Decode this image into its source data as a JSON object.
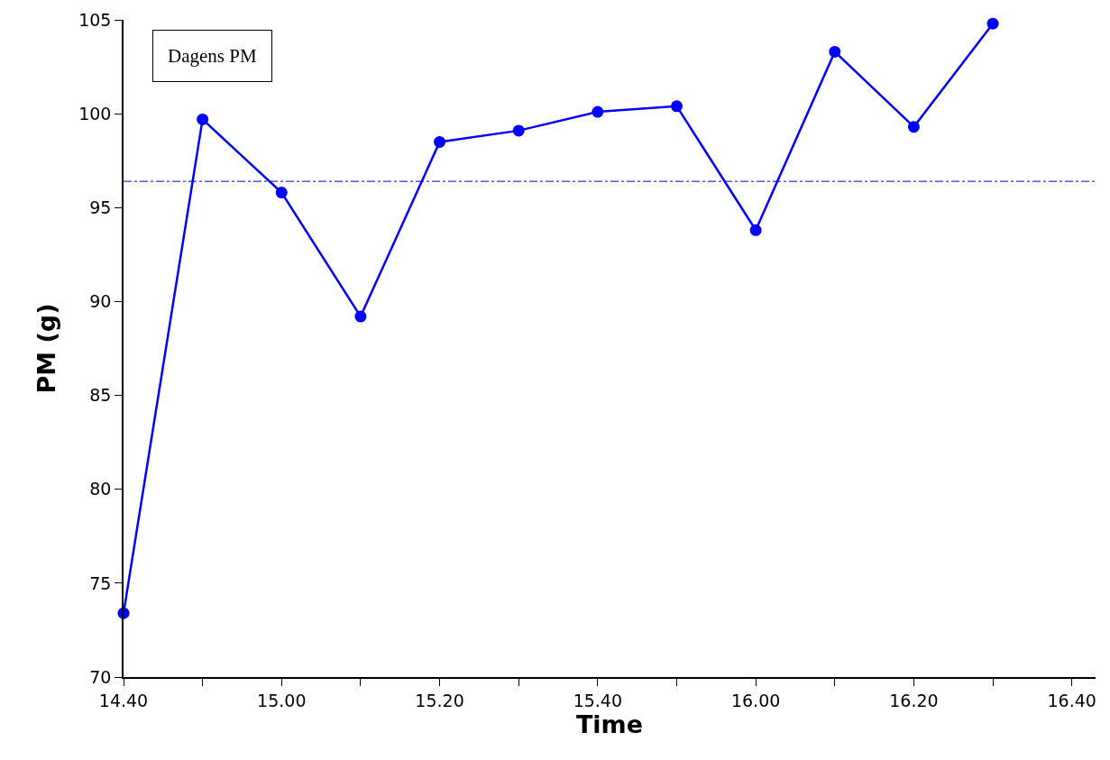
{
  "chart_data": {
    "type": "line",
    "xlabel": "Time",
    "ylabel": "PM (g)",
    "categories": [
      "14.40",
      null,
      "15.00",
      null,
      "15.20",
      null,
      "15.40",
      null,
      "16.00",
      null,
      "16.20",
      null,
      "16.40"
    ],
    "series": [
      {
        "color": "#0000ff",
        "values": [
          73.4,
          99.7,
          95.8,
          89.2,
          98.5,
          99.1,
          100.1,
          100.4,
          93.8,
          103.3,
          99.3,
          104.8,
          null
        ]
      }
    ],
    "ylim": [
      70,
      105
    ],
    "yticks": [
      70,
      75,
      80,
      85,
      90,
      95,
      100,
      105
    ],
    "ref_lines": [
      {
        "axis": "y",
        "value": 96.4,
        "color": "#0000cc",
        "line_style": "dashed"
      }
    ],
    "annotations": [
      "Dagens PM"
    ],
    "grid": false,
    "marker": "circle",
    "line_style": "solid"
  }
}
